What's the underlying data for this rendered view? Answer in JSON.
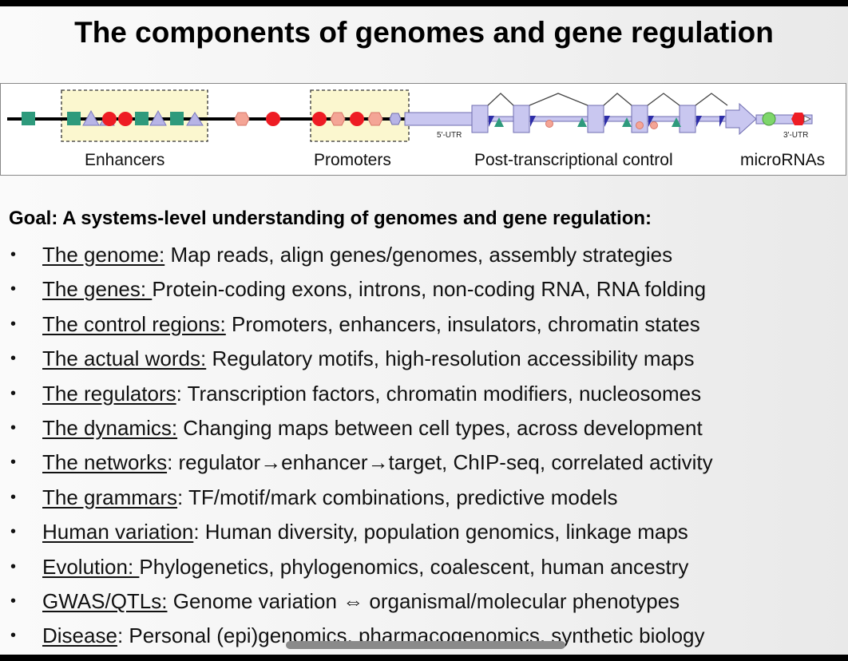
{
  "slide": {
    "title": "The components of genomes and gene regulation",
    "goal": "Goal: A systems-level understanding of genomes and gene regulation:"
  },
  "diagram": {
    "labels": [
      "Enhancers",
      "Promoters",
      "Post-transcriptional control",
      "microRNAs"
    ],
    "utr5": "5'-UTR",
    "utr3": "3'-UTR"
  },
  "items": [
    {
      "key": "The genome:",
      "desc": " Map reads, align genes/genomes, assembly strategies"
    },
    {
      "key": "The genes: ",
      "desc": " Protein-coding exons, introns, non-coding RNA, RNA folding"
    },
    {
      "key": "The control regions:",
      "desc": " Promoters, enhancers, insulators, chromatin states"
    },
    {
      "key": "The actual words:",
      "desc": " Regulatory motifs, high-resolution accessibility maps"
    },
    {
      "key": "The regulators",
      "desc": ":  Transcription factors, chromatin modifiers, nucleosomes"
    },
    {
      "key": "The dynamics:",
      "desc": " Changing maps between cell types, across development"
    },
    {
      "key": "The networks",
      "desc": ":  regulator→enhancer→target, ChIP-seq, correlated activity"
    },
    {
      "key": "The grammars",
      "desc": ":  TF/motif/mark combinations, predictive models"
    },
    {
      "key": "Human variation",
      "desc": ": Human diversity, population genomics, linkage maps"
    },
    {
      "key": "Evolution: ",
      "desc": "Phylogenetics, phylogenomics, coalescent, human ancestry"
    },
    {
      "key": "GWAS/QTLs:",
      "desc": " Genome variation ⇔ organismal/molecular phenotypes"
    },
    {
      "key": "Disease",
      "desc": ": Personal (epi)genomics, pharmacogenomics, synthetic biology"
    }
  ],
  "colors": {
    "green": "#2e9a7c",
    "purple": "#b7b4e6",
    "red": "#ee1c24",
    "salmon": "#f4a596",
    "highlight": "#fbf7cf",
    "exon": "#c9c7f0"
  }
}
